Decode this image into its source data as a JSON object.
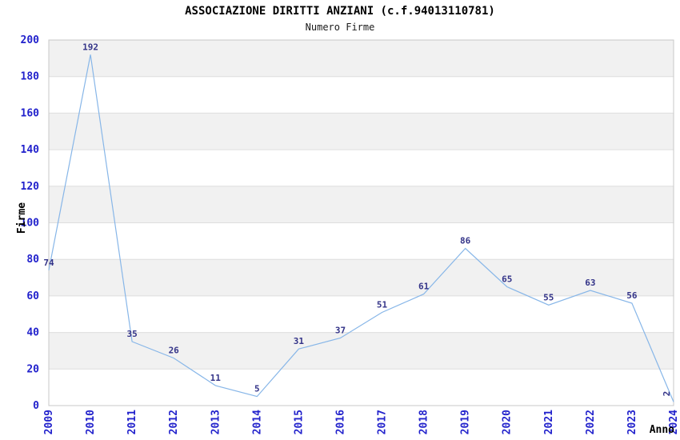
{
  "chart_data": {
    "type": "line",
    "title": "ASSOCIAZIONE DIRITTI ANZIANI (c.f.94013110781)",
    "subtitle": "Numero Firme",
    "xlabel": "Anno",
    "ylabel": "Firme",
    "categories": [
      "2009",
      "2010",
      "2011",
      "2012",
      "2013",
      "2014",
      "2015",
      "2016",
      "2017",
      "2018",
      "2019",
      "2020",
      "2021",
      "2022",
      "2023",
      "2024"
    ],
    "values": [
      74,
      192,
      35,
      26,
      11,
      5,
      31,
      37,
      51,
      61,
      86,
      65,
      55,
      63,
      56,
      2
    ],
    "ylim": [
      0,
      200
    ],
    "y_ticks": [
      0,
      20,
      40,
      60,
      80,
      100,
      120,
      140,
      160,
      180,
      200
    ],
    "grid": "horizontal-bands-alternating",
    "legend": "none",
    "data_labels_visible": true,
    "last_label_rotated": true,
    "colors": {
      "line": "#87b6e8",
      "tick_label": "#2222cc",
      "data_label": "#333388",
      "band": "#f1f1f1",
      "gridline": "#dedede",
      "plot_border": "#c8c8c8",
      "title": "#000000"
    }
  }
}
